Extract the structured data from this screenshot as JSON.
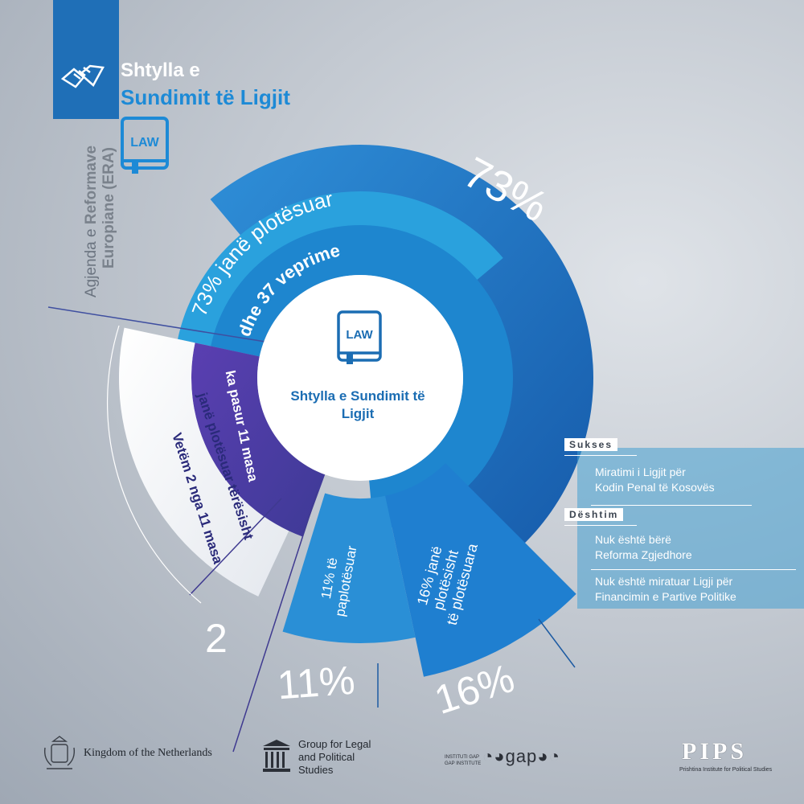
{
  "header": {
    "title_line1": "Shtylla e",
    "title_line2": "Sundimit të Ligjit",
    "side_text_line1_a": "Agjenda e ",
    "side_text_line1_b": "Reformave",
    "side_text_line2": "Europiane (ERA)",
    "book_label": "LAW"
  },
  "center": {
    "book_label": "LAW",
    "label": "Shtylla e Sundimit të Ligjit"
  },
  "segments": {
    "complete_label": "73% janë plotësuar",
    "actions_label": "dhe 37 veprime",
    "measures_label": "ka pasur 11 masa",
    "only_label_1": "Vetëm 2 nga 11 masa",
    "only_label_2": "janë plotësuar tërësisht",
    "incomplete_label_1": "11% të",
    "incomplete_label_2": "paplotësuar",
    "partial_label_1": "16% janë",
    "partial_label_2": "plotësisht",
    "partial_label_3": "të plotësuara"
  },
  "big_numbers": {
    "pct_73": "73%",
    "num_2": "2",
    "pct_11": "11%",
    "pct_16": "16%"
  },
  "panel": {
    "success_tag": "Sukses",
    "success_text_1": "Miratimi i Ligjit për",
    "success_text_2": "Kodin Penal të Kosovës",
    "failure_tag": "Dështim",
    "failure_1_line1": "Nuk është bërë",
    "failure_1_line2": "Reforma Zgjedhore",
    "failure_2_line1": "Nuk është miratuar Ligji për",
    "failure_2_line2": "Financimin e Partive Politike"
  },
  "footer": {
    "netherlands": "Kingdom of the Netherlands",
    "glps_1": "Group for Legal",
    "glps_2": "and Political",
    "glps_3": "Studies",
    "gap_small_1": "INSTITUTI GAP",
    "gap_small_2": "GAP INSTITUTE",
    "gap_logo": "gap",
    "pips_logo": "PIPS",
    "pips_sub": "Prishtina Institute for Political Studies"
  },
  "colors": {
    "outer_ring": "#1c6fc1",
    "bright_blue": "#2aa3dd",
    "mid_blue": "#1f8ad2",
    "purple": "#4a3ea0",
    "white": "#ffffff"
  }
}
